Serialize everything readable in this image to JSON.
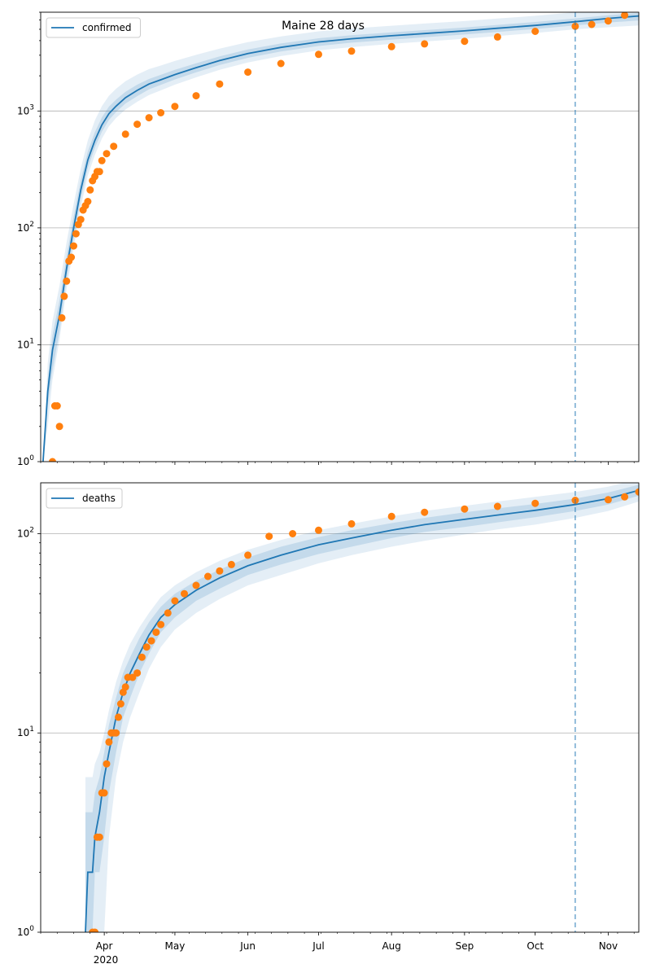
{
  "title": "Maine 28 days",
  "colors": {
    "model": "#1f77b4",
    "observed": "#ff7f0e",
    "band": "#1f77b4",
    "grid": "#b0b0b0",
    "forecast_line": "#1f77b4"
  },
  "x_axis": {
    "month_labels": [
      "Apr",
      "May",
      "Jun",
      "Jul",
      "Aug",
      "Sep",
      "Oct",
      "Nov"
    ],
    "year_label": "2020"
  },
  "chart_data": [
    {
      "type": "line",
      "legend": "confirmed",
      "legend_placement": "top-left",
      "yscale": "log",
      "ylim": [
        1,
        7000
      ],
      "xlim": [
        "2020-03-05",
        "2020-11-14"
      ],
      "grid": "horizontal",
      "forecast_start": "2020-10-18",
      "y_tick_labels": [
        "10^0",
        "10^1",
        "10^2",
        "10^3"
      ],
      "model": {
        "name": "confirmed",
        "x": [
          "2020-03-06",
          "2020-03-08",
          "2020-03-10",
          "2020-03-13",
          "2020-03-16",
          "2020-03-19",
          "2020-03-22",
          "2020-03-25",
          "2020-03-28",
          "2020-03-31",
          "2020-04-03",
          "2020-04-06",
          "2020-04-10",
          "2020-04-15",
          "2020-04-20",
          "2020-04-25",
          "2020-05-01",
          "2020-05-10",
          "2020-05-20",
          "2020-06-01",
          "2020-06-15",
          "2020-07-01",
          "2020-07-15",
          "2020-08-01",
          "2020-08-15",
          "2020-09-01",
          "2020-09-15",
          "2020-10-01",
          "2020-10-18",
          "2020-11-01",
          "2020-11-14"
        ],
        "y": [
          1,
          4,
          9,
          18,
          45,
          100,
          210,
          380,
          560,
          760,
          950,
          1100,
          1300,
          1500,
          1700,
          1850,
          2050,
          2350,
          2700,
          3100,
          3500,
          3900,
          4150,
          4400,
          4600,
          4850,
          5100,
          5400,
          5800,
          6200,
          6500
        ]
      },
      "bands": [
        {
          "lower": [
            1,
            2,
            5,
            11,
            30,
            68,
            150,
            280,
            420,
            580,
            740,
            870,
            1030,
            1200,
            1370,
            1500,
            1680,
            1940,
            2250,
            2600,
            2950,
            3300,
            3520,
            3750,
            3930,
            4150,
            4380,
            4650,
            5000,
            5200,
            5400
          ],
          "upper": [
            1,
            7,
            16,
            32,
            75,
            160,
            320,
            560,
            830,
            1100,
            1350,
            1550,
            1800,
            2050,
            2280,
            2450,
            2680,
            3020,
            3420,
            3880,
            4350,
            4800,
            5080,
            5360,
            5600,
            5880,
            6180,
            6520,
            7000,
            7300,
            7600
          ]
        },
        {
          "lower": [
            1,
            3,
            6,
            13,
            36,
            80,
            175,
            325,
            485,
            665,
            840,
            980,
            1160,
            1340,
            1530,
            1670,
            1860,
            2140,
            2470,
            2850,
            3230,
            3600,
            3840,
            4080,
            4270,
            4510,
            4750,
            5030,
            5400,
            5700,
            5950
          ],
          "upper": [
            1,
            5,
            12,
            24,
            57,
            125,
            255,
            450,
            660,
            880,
            1090,
            1250,
            1460,
            1680,
            1880,
            2040,
            2250,
            2560,
            2930,
            3360,
            3780,
            4190,
            4450,
            4710,
            4920,
            5180,
            5450,
            5770,
            6200,
            6600,
            6900
          ]
        }
      ],
      "observed": {
        "x": [
          "2020-03-10",
          "2020-03-11",
          "2020-03-12",
          "2020-03-13",
          "2020-03-14",
          "2020-03-15",
          "2020-03-16",
          "2020-03-17",
          "2020-03-18",
          "2020-03-19",
          "2020-03-20",
          "2020-03-21",
          "2020-03-22",
          "2020-03-23",
          "2020-03-24",
          "2020-03-25",
          "2020-03-26",
          "2020-03-27",
          "2020-03-28",
          "2020-03-29",
          "2020-03-30",
          "2020-03-31",
          "2020-04-02",
          "2020-04-05",
          "2020-04-10",
          "2020-04-15",
          "2020-04-20",
          "2020-04-25",
          "2020-05-01",
          "2020-05-10",
          "2020-05-20",
          "2020-06-01",
          "2020-06-15",
          "2020-07-01",
          "2020-07-15",
          "2020-08-01",
          "2020-08-15",
          "2020-09-01",
          "2020-09-15",
          "2020-10-01",
          "2020-10-18",
          "2020-10-25",
          "2020-11-01",
          "2020-11-08",
          "2020-11-14"
        ],
        "y": [
          1,
          3,
          3,
          2,
          17,
          26,
          35,
          52,
          56,
          70,
          89,
          107,
          118,
          142,
          155,
          168,
          211,
          253,
          275,
          303,
          303,
          376,
          432,
          499,
          633,
          770,
          875,
          965,
          1095,
          1350,
          1700,
          2150,
          2550,
          3050,
          3250,
          3550,
          3750,
          3950,
          4300,
          4800,
          5300,
          5500,
          5900,
          6600,
          7700
        ]
      }
    },
    {
      "type": "line",
      "legend": "deaths",
      "legend_placement": "top-left",
      "yscale": "log",
      "ylim": [
        1,
        180
      ],
      "xlim": [
        "2020-03-05",
        "2020-11-14"
      ],
      "grid": "horizontal",
      "forecast_start": "2020-10-18",
      "y_tick_labels": [
        "10^0",
        "10^1",
        "10^2"
      ],
      "model": {
        "name": "deaths",
        "x": [
          "2020-03-24",
          "2020-03-25",
          "2020-03-27",
          "2020-03-28",
          "2020-03-30",
          "2020-04-01",
          "2020-04-03",
          "2020-04-06",
          "2020-04-09",
          "2020-04-12",
          "2020-04-16",
          "2020-04-20",
          "2020-04-25",
          "2020-05-01",
          "2020-05-10",
          "2020-05-20",
          "2020-06-01",
          "2020-06-15",
          "2020-07-01",
          "2020-07-15",
          "2020-08-01",
          "2020-08-15",
          "2020-09-01",
          "2020-09-15",
          "2020-10-01",
          "2020-10-18",
          "2020-11-01",
          "2020-11-14"
        ],
        "y": [
          1,
          2,
          2,
          3,
          4,
          6,
          8,
          12,
          16,
          20,
          25,
          31,
          38,
          44,
          52,
          60,
          69,
          78,
          88,
          95,
          104,
          111,
          118,
          124,
          131,
          140,
          150,
          165
        ]
      },
      "bands": [
        {
          "lower": [
            1,
            1,
            1,
            1,
            1,
            1,
            3,
            6,
            9,
            12,
            16,
            21,
            27,
            33,
            40,
            47,
            55,
            62,
            71,
            78,
            86,
            92,
            99,
            105,
            111,
            120,
            130,
            145
          ],
          "upper": [
            6,
            6,
            6,
            7,
            8,
            10,
            13,
            18,
            23,
            28,
            34,
            40,
            48,
            55,
            64,
            73,
            83,
            93,
            104,
            112,
            122,
            130,
            138,
            145,
            153,
            162,
            172,
            188
          ]
        },
        {
          "lower": [
            1,
            1,
            1,
            2,
            2,
            3,
            5,
            8,
            12,
            15,
            20,
            25,
            32,
            38,
            46,
            53,
            62,
            70,
            79,
            86,
            95,
            102,
            108,
            114,
            121,
            130,
            140,
            155
          ],
          "upper": [
            4,
            4,
            4,
            5,
            6,
            8,
            11,
            15,
            20,
            24,
            30,
            36,
            43,
            50,
            58,
            66,
            76,
            86,
            96,
            104,
            113,
            120,
            128,
            134,
            141,
            150,
            161,
            176
          ]
        }
      ],
      "observed": {
        "x": [
          "2020-03-27",
          "2020-03-28",
          "2020-03-29",
          "2020-03-30",
          "2020-03-31",
          "2020-04-01",
          "2020-04-02",
          "2020-04-03",
          "2020-04-04",
          "2020-04-05",
          "2020-04-06",
          "2020-04-07",
          "2020-04-08",
          "2020-04-09",
          "2020-04-10",
          "2020-04-11",
          "2020-04-13",
          "2020-04-15",
          "2020-04-17",
          "2020-04-19",
          "2020-04-21",
          "2020-04-23",
          "2020-04-25",
          "2020-04-28",
          "2020-05-01",
          "2020-05-05",
          "2020-05-10",
          "2020-05-15",
          "2020-05-20",
          "2020-05-25",
          "2020-06-01",
          "2020-06-10",
          "2020-06-20",
          "2020-07-01",
          "2020-07-15",
          "2020-08-01",
          "2020-08-15",
          "2020-09-01",
          "2020-09-15",
          "2020-10-01",
          "2020-10-18",
          "2020-11-01",
          "2020-11-08",
          "2020-11-14"
        ],
        "y": [
          1,
          1,
          3,
          3,
          5,
          5,
          7,
          9,
          10,
          10,
          10,
          12,
          14,
          16,
          17,
          19,
          19,
          20,
          24,
          27,
          29,
          32,
          35,
          40,
          46,
          50,
          55,
          61,
          65,
          70,
          78,
          97,
          100,
          104,
          112,
          122,
          128,
          133,
          137,
          142,
          147,
          148,
          153,
          162
        ]
      }
    }
  ]
}
